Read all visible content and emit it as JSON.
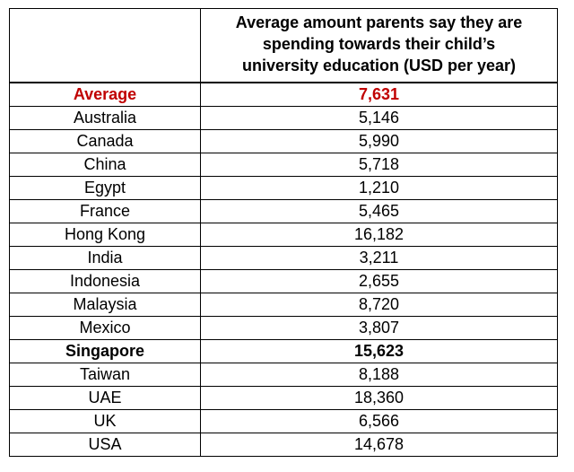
{
  "table": {
    "header": [
      "Average amount parents say they are",
      "spending towards their child’s",
      "university education (USD per year)"
    ],
    "rows": [
      [
        "Average",
        "7,631"
      ],
      [
        "Australia",
        "5,146"
      ],
      [
        "Canada",
        "5,990"
      ],
      [
        "China",
        "5,718"
      ],
      [
        "Egypt",
        "1,210"
      ],
      [
        "France",
        "5,465"
      ],
      [
        "Hong Kong",
        "16,182"
      ],
      [
        "India",
        "3,211"
      ],
      [
        "Indonesia",
        "2,655"
      ],
      [
        "Malaysia",
        "8,720"
      ],
      [
        "Mexico",
        "3,807"
      ],
      [
        "Singapore",
        "15,623"
      ],
      [
        "Taiwan",
        "8,188"
      ],
      [
        "UAE",
        "18,360"
      ],
      [
        "UK",
        "6,566"
      ],
      [
        "USA",
        "14,678"
      ]
    ]
  }
}
